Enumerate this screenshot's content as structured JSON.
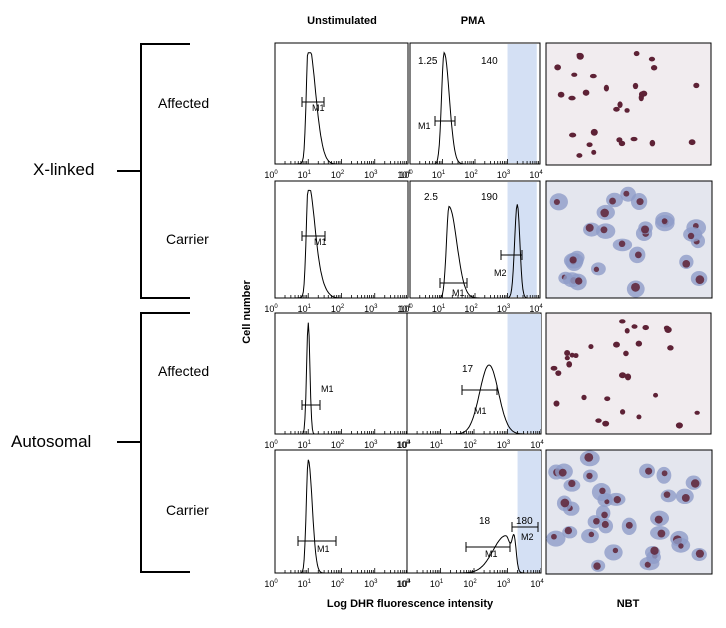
{
  "columns": {
    "unstimulated": "Unstimulated",
    "pma": "PMA",
    "nbt": "NBT"
  },
  "axis": {
    "y_label": "Cell number",
    "x_label": "Log DHR fluorescence intensity",
    "ticks": [
      "10",
      "10",
      "10",
      "10",
      "10"
    ],
    "tick_exps": [
      "0",
      "1",
      "2",
      "3",
      "4"
    ]
  },
  "groups": [
    {
      "label": "X-linked",
      "rows": [
        "Affected",
        "Carrier"
      ]
    },
    {
      "label": "Autosomal",
      "rows": [
        "Affected",
        "Carrier"
      ]
    }
  ],
  "panels": [
    {
      "row": "X-linked Affected",
      "unstim_gate": "M1",
      "pma_values": [
        "1.25",
        "140"
      ],
      "pma_gates": [
        "M1"
      ]
    },
    {
      "row": "X-linked Carrier",
      "unstim_gate": "M1",
      "pma_values": [
        "2.5",
        "190"
      ],
      "pma_gates": [
        "M1",
        "M2"
      ]
    },
    {
      "row": "Autosomal Affected",
      "unstim_gate": "M1",
      "pma_values": [
        "17"
      ],
      "pma_gates": [
        "M1"
      ]
    },
    {
      "row": "Autosomal Carrier",
      "unstim_gate": "M1",
      "pma_values": [
        "18",
        "180"
      ],
      "pma_gates": [
        "M1",
        "M2"
      ]
    }
  ],
  "colors": {
    "shade": "#d4e0f4",
    "line": "#000000",
    "cell_dark": "#5e2236",
    "cell_blue": "#8e9cc8",
    "nbt_bg_sparse": "#f1ecef",
    "nbt_bg_dense": "#e4e6ee"
  }
}
